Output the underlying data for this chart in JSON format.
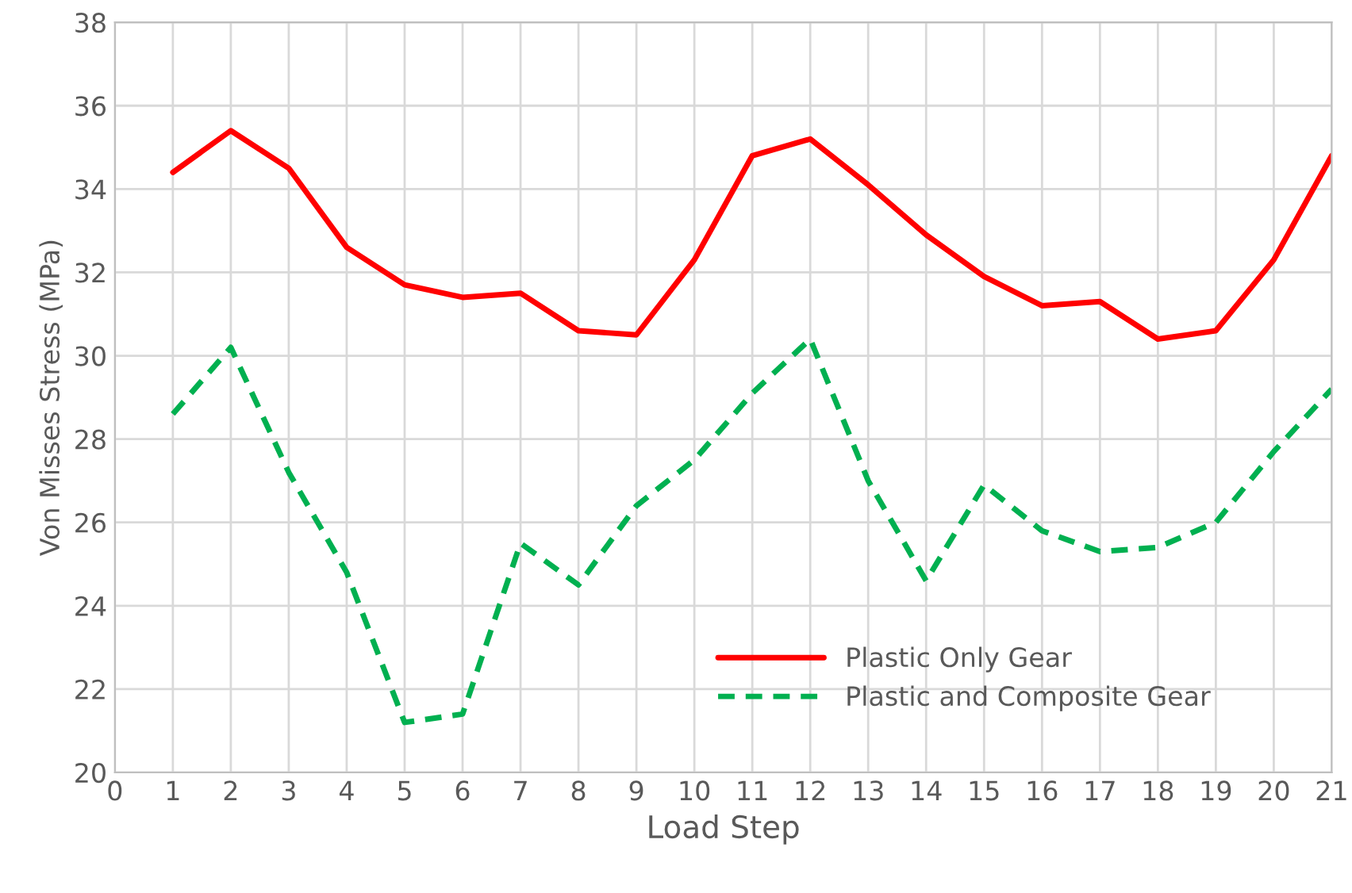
{
  "chart_data": {
    "type": "line",
    "xlabel": "Load Step",
    "ylabel": "Von Misses Stress (MPa)",
    "x": [
      1,
      2,
      3,
      4,
      5,
      6,
      7,
      8,
      9,
      10,
      11,
      12,
      13,
      14,
      15,
      16,
      17,
      18,
      19,
      20,
      21
    ],
    "series": [
      {
        "name": "Plastic Only Gear",
        "color": "#ff0000",
        "line_style": "solid",
        "values": [
          34.4,
          35.4,
          34.5,
          32.6,
          31.7,
          31.4,
          31.5,
          30.6,
          30.5,
          32.3,
          34.8,
          35.2,
          34.1,
          32.9,
          31.9,
          31.2,
          31.3,
          30.4,
          30.6,
          32.3,
          34.8
        ]
      },
      {
        "name": "Plastic and Composite Gear",
        "color": "#00b050",
        "line_style": "dashed",
        "values": [
          28.6,
          30.2,
          27.2,
          24.8,
          21.2,
          21.4,
          25.5,
          24.5,
          26.4,
          27.5,
          29.1,
          30.4,
          27.0,
          24.6,
          26.9,
          25.8,
          25.3,
          25.4,
          26.0,
          27.7,
          29.2
        ]
      }
    ],
    "xlim": [
      0,
      21
    ],
    "xticks": [
      0,
      1,
      2,
      3,
      4,
      5,
      6,
      7,
      8,
      9,
      10,
      11,
      12,
      13,
      14,
      15,
      16,
      17,
      18,
      19,
      20,
      21
    ],
    "ylim": [
      20,
      38
    ],
    "yticks": [
      20,
      22,
      24,
      26,
      28,
      30,
      32,
      34,
      36,
      38
    ],
    "grid": true,
    "legend": "bottom right",
    "marker": "none"
  }
}
